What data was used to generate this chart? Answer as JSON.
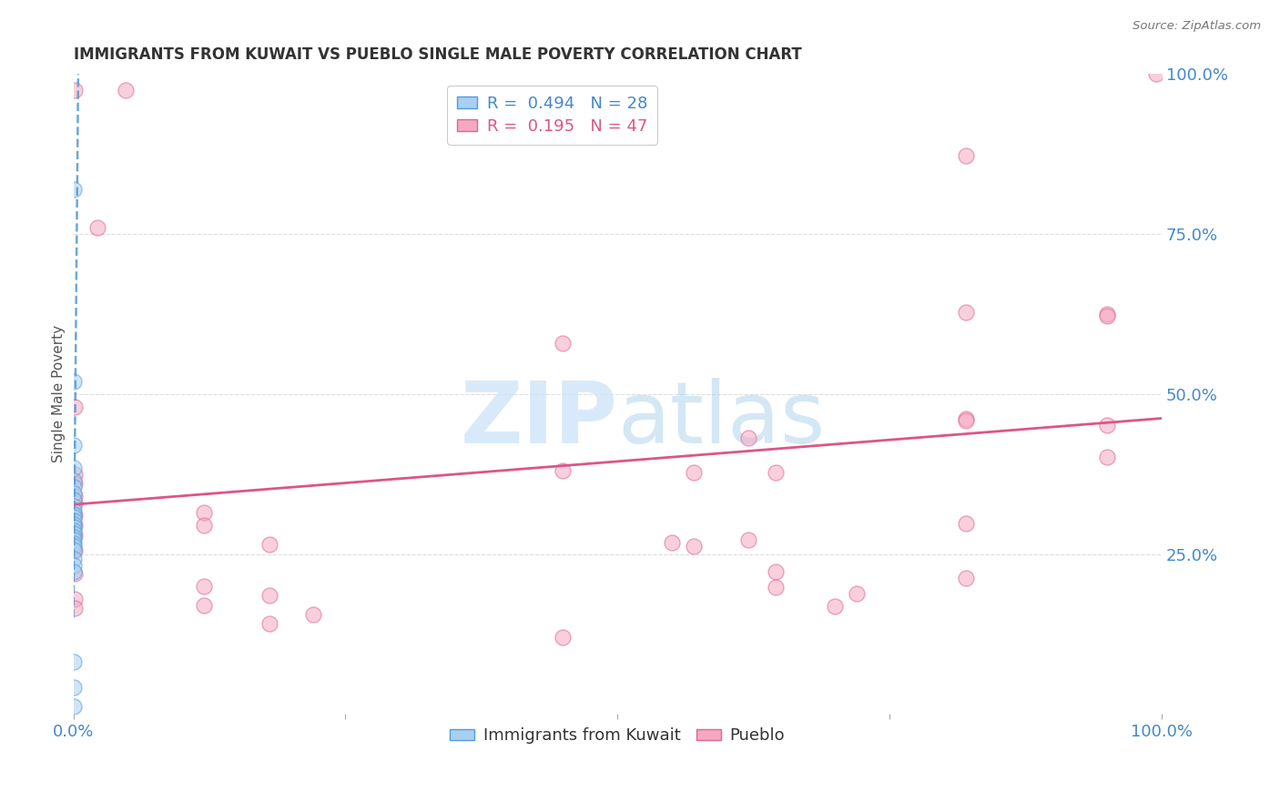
{
  "title": "IMMIGRANTS FROM KUWAIT VS PUEBLO SINGLE MALE POVERTY CORRELATION CHART",
  "source": "Source: ZipAtlas.com",
  "ylabel": "Single Male Poverty",
  "legend_labels": [
    "Immigrants from Kuwait",
    "Pueblo"
  ],
  "r_blue": 0.494,
  "n_blue": 28,
  "r_pink": 0.195,
  "n_pink": 47,
  "blue_color": "#a8d0f0",
  "pink_color": "#f5a8bf",
  "blue_edge_color": "#5599dd",
  "pink_edge_color": "#dd6699",
  "blue_line_color": "#5599cc",
  "pink_line_color": "#dd5588",
  "tick_color": "#4488cc",
  "watermark_color": "#cce4f7",
  "blue_dots": [
    [
      0.0008,
      0.82
    ],
    [
      0.0008,
      0.52
    ],
    [
      0.0008,
      0.42
    ],
    [
      0.0008,
      0.385
    ],
    [
      0.0008,
      0.365
    ],
    [
      0.0008,
      0.355
    ],
    [
      0.0008,
      0.345
    ],
    [
      0.0008,
      0.335
    ],
    [
      0.0008,
      0.325
    ],
    [
      0.0008,
      0.318
    ],
    [
      0.0008,
      0.312
    ],
    [
      0.0008,
      0.308
    ],
    [
      0.0008,
      0.302
    ],
    [
      0.0008,
      0.297
    ],
    [
      0.0008,
      0.292
    ],
    [
      0.0008,
      0.287
    ],
    [
      0.0008,
      0.282
    ],
    [
      0.0008,
      0.277
    ],
    [
      0.0008,
      0.272
    ],
    [
      0.0008,
      0.267
    ],
    [
      0.0008,
      0.262
    ],
    [
      0.0008,
      0.257
    ],
    [
      0.0008,
      0.242
    ],
    [
      0.0008,
      0.232
    ],
    [
      0.0008,
      0.222
    ],
    [
      0.0008,
      0.082
    ],
    [
      0.0008,
      0.042
    ],
    [
      0.0008,
      0.012
    ]
  ],
  "pink_dots": [
    [
      0.001,
      0.975
    ],
    [
      0.048,
      0.975
    ],
    [
      0.001,
      0.48
    ],
    [
      0.001,
      0.375
    ],
    [
      0.001,
      0.36
    ],
    [
      0.001,
      0.34
    ],
    [
      0.001,
      0.33
    ],
    [
      0.001,
      0.31
    ],
    [
      0.001,
      0.295
    ],
    [
      0.001,
      0.28
    ],
    [
      0.001,
      0.255
    ],
    [
      0.001,
      0.22
    ],
    [
      0.001,
      0.18
    ],
    [
      0.001,
      0.165
    ],
    [
      0.022,
      0.76
    ],
    [
      0.12,
      0.315
    ],
    [
      0.12,
      0.295
    ],
    [
      0.12,
      0.2
    ],
    [
      0.12,
      0.17
    ],
    [
      0.18,
      0.265
    ],
    [
      0.18,
      0.185
    ],
    [
      0.18,
      0.142
    ],
    [
      0.22,
      0.155
    ],
    [
      0.45,
      0.58
    ],
    [
      0.45,
      0.38
    ],
    [
      0.45,
      0.12
    ],
    [
      0.55,
      0.268
    ],
    [
      0.57,
      0.378
    ],
    [
      0.57,
      0.262
    ],
    [
      0.62,
      0.432
    ],
    [
      0.62,
      0.272
    ],
    [
      0.645,
      0.378
    ],
    [
      0.645,
      0.222
    ],
    [
      0.645,
      0.198
    ],
    [
      0.7,
      0.168
    ],
    [
      0.72,
      0.188
    ],
    [
      0.82,
      0.872
    ],
    [
      0.82,
      0.628
    ],
    [
      0.82,
      0.462
    ],
    [
      0.82,
      0.458
    ],
    [
      0.82,
      0.298
    ],
    [
      0.82,
      0.212
    ],
    [
      0.95,
      0.625
    ],
    [
      0.95,
      0.622
    ],
    [
      0.95,
      0.452
    ],
    [
      0.95,
      0.402
    ],
    [
      0.995,
      1.0
    ]
  ],
  "xlim": [
    0,
    1.0
  ],
  "ylim": [
    0,
    1.0
  ],
  "xtick_positions": [
    0.0,
    0.25,
    0.5,
    0.75,
    1.0
  ],
  "xtick_labels": [
    "0.0%",
    "",
    "",
    "",
    "100.0%"
  ],
  "ytick_positions_right": [
    0.0,
    0.25,
    0.5,
    0.75,
    1.0
  ],
  "ytick_labels_right": [
    "",
    "25.0%",
    "50.0%",
    "75.0%",
    "100.0%"
  ],
  "grid_color": "#dddddd",
  "background_color": "#ffffff",
  "dot_size": 150,
  "dot_alpha": 0.55,
  "dot_linewidth": 1.0
}
